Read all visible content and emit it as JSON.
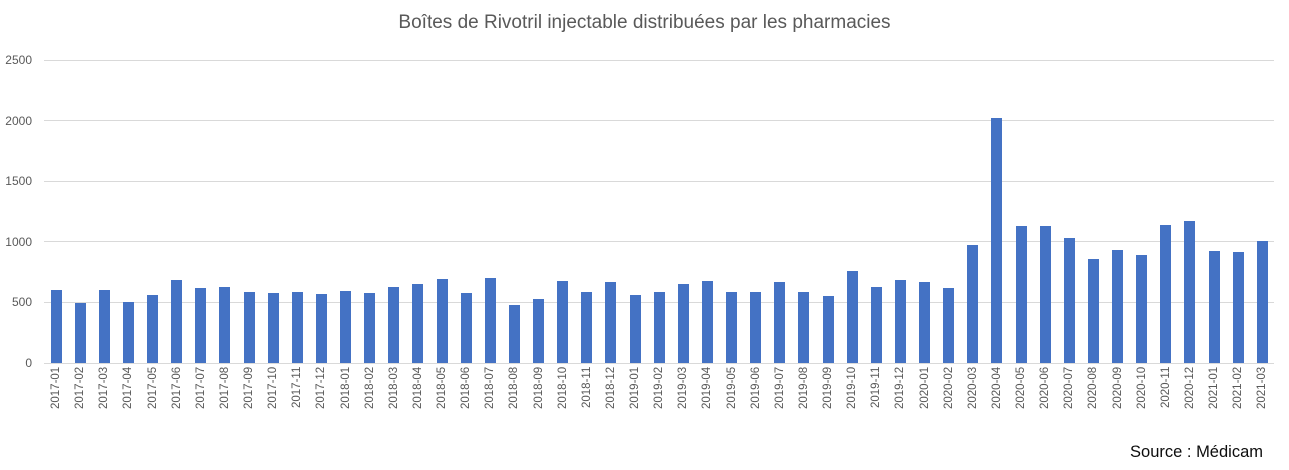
{
  "title": "Boîtes de Rivotril injectable distribuées par les pharmacies",
  "source_label": "Source : Médicam",
  "colors": {
    "bar": "#4472c4",
    "gridline": "#d9d9d9",
    "axis_text": "#595959",
    "title_text": "#595959",
    "source_text": "#0d0d0d"
  },
  "chart_data": {
    "type": "bar",
    "title": "Boîtes de Rivotril injectable distribuées par les pharmacies",
    "xlabel": "",
    "ylabel": "",
    "ylim": [
      0,
      2500
    ],
    "yticks": [
      0,
      500,
      1000,
      1500,
      2000,
      2500
    ],
    "grid": true,
    "legend": false,
    "annotation": "Source : Médicam",
    "categories": [
      "2017-01",
      "2017-02",
      "2017-03",
      "2017-04",
      "2017-05",
      "2017-06",
      "2017-07",
      "2017-08",
      "2017-09",
      "2017-10",
      "2017-11",
      "2017-12",
      "2018-01",
      "2018-02",
      "2018-03",
      "2018-04",
      "2018-05",
      "2018-06",
      "2018-07",
      "2018-08",
      "2018-09",
      "2018-10",
      "2018-11",
      "2018-12",
      "2019-01",
      "2019-02",
      "2019-03",
      "2019-04",
      "2019-05",
      "2019-06",
      "2019-07",
      "2019-08",
      "2019-09",
      "2019-10",
      "2019-11",
      "2019-12",
      "2020-01",
      "2020-02",
      "2020-03",
      "2020-04",
      "2020-05",
      "2020-06",
      "2020-07",
      "2020-08",
      "2020-09",
      "2020-10",
      "2020-11",
      "2020-12",
      "2021-01",
      "2021-02",
      "2021-03"
    ],
    "values": [
      605,
      495,
      600,
      505,
      565,
      685,
      620,
      625,
      590,
      580,
      590,
      570,
      595,
      580,
      625,
      650,
      695,
      575,
      705,
      475,
      530,
      680,
      590,
      665,
      565,
      590,
      650,
      680,
      585,
      590,
      665,
      585,
      555,
      760,
      630,
      685,
      665,
      620,
      970,
      2020,
      1130,
      1130,
      1030,
      860,
      935,
      895,
      1135,
      1170,
      925,
      915,
      1005
    ]
  }
}
